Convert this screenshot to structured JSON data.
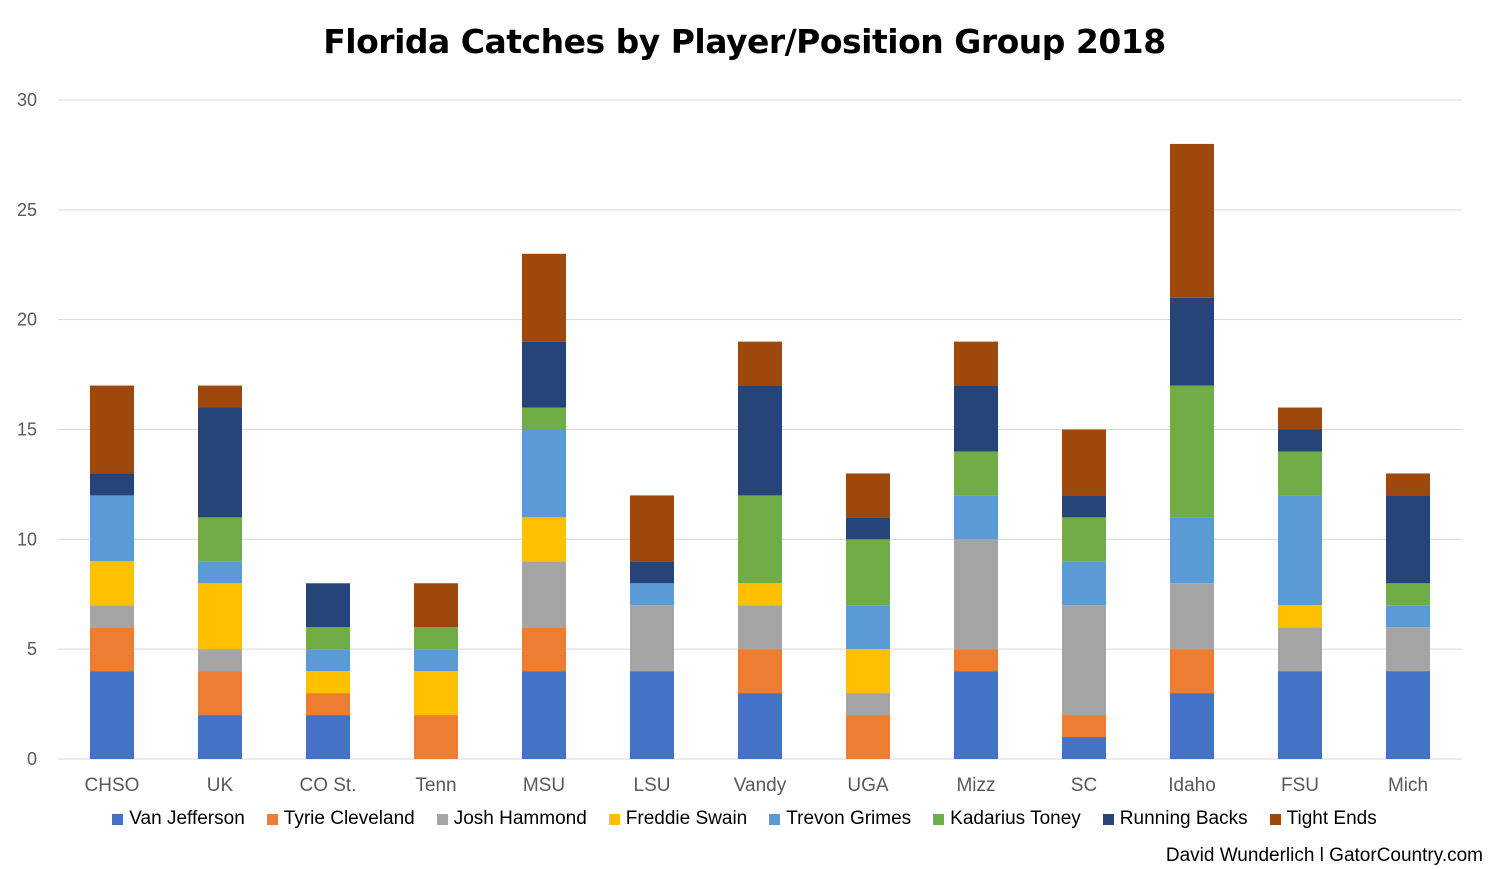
{
  "chart_data": {
    "type": "bar",
    "stacked": true,
    "title": "Florida Catches by Player/Position Group 2018",
    "categories": [
      "CHSO",
      "UK",
      "CO St.",
      "Tenn",
      "MSU",
      "LSU",
      "Vandy",
      "UGA",
      "Mizz",
      "SC",
      "Idaho",
      "FSU",
      "Mich"
    ],
    "ylim": [
      0,
      30
    ],
    "yticks": [
      0,
      5,
      10,
      15,
      20,
      25,
      30
    ],
    "grid": true,
    "legend_position": "bottom",
    "series": [
      {
        "name": "Van Jefferson",
        "color": "#4472C4",
        "values": [
          4,
          2,
          2,
          0,
          4,
          4,
          3,
          0,
          4,
          1,
          3,
          4,
          4
        ]
      },
      {
        "name": "Tyrie Cleveland",
        "color": "#ED7D31",
        "values": [
          2,
          2,
          1,
          2,
          2,
          0,
          2,
          2,
          1,
          1,
          2,
          0,
          0
        ]
      },
      {
        "name": "Josh Hammond",
        "color": "#A5A5A5",
        "values": [
          1,
          1,
          0,
          0,
          3,
          3,
          2,
          1,
          5,
          5,
          3,
          2,
          2
        ]
      },
      {
        "name": "Freddie Swain",
        "color": "#FFC000",
        "values": [
          2,
          3,
          1,
          2,
          2,
          0,
          1,
          2,
          0,
          0,
          0,
          1,
          0
        ]
      },
      {
        "name": "Trevon Grimes",
        "color": "#5B9BD5",
        "values": [
          3,
          1,
          1,
          1,
          4,
          1,
          0,
          2,
          2,
          2,
          3,
          5,
          1
        ]
      },
      {
        "name": "Kadarius Toney",
        "color": "#70AD47",
        "values": [
          0,
          2,
          1,
          1,
          1,
          0,
          4,
          3,
          2,
          2,
          6,
          2,
          1
        ]
      },
      {
        "name": "Running Backs",
        "color": "#264478",
        "values": [
          1,
          5,
          2,
          0,
          3,
          1,
          5,
          1,
          3,
          1,
          4,
          1,
          4
        ]
      },
      {
        "name": "Tight Ends",
        "color": "#9E480E",
        "values": [
          4,
          1,
          0,
          2,
          4,
          3,
          2,
          2,
          2,
          3,
          7,
          1,
          1
        ]
      }
    ]
  },
  "credit": "David Wunderlich l GatorCountry.com"
}
